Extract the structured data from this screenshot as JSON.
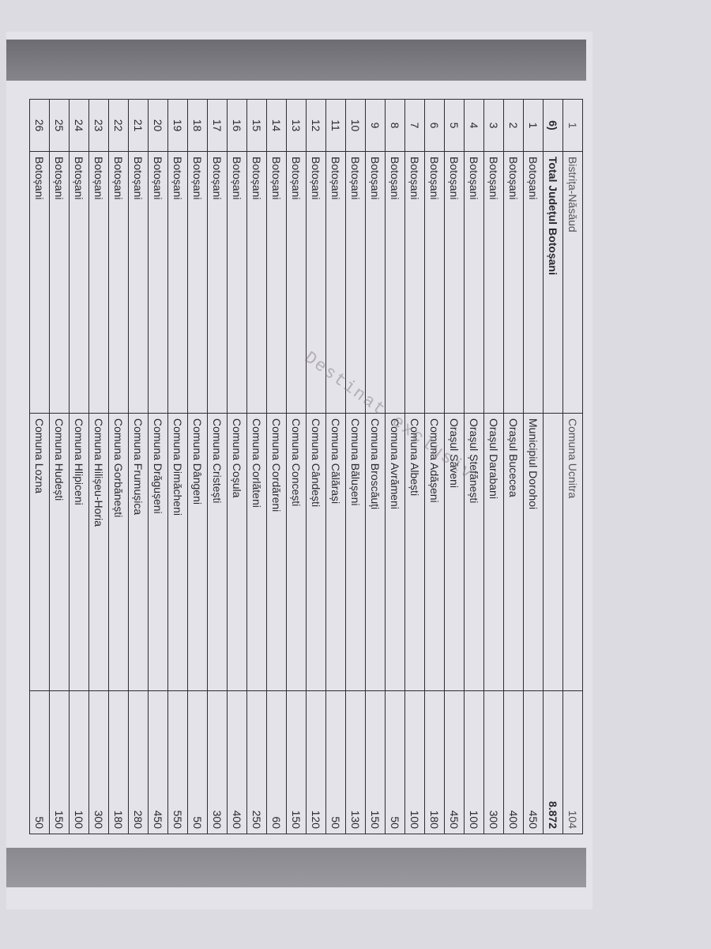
{
  "document": {
    "watermark": "Destinat exclusiv",
    "first_row": {
      "index": "1",
      "county": "Bistrița-Năsăud",
      "locality": "Comuna Ucnitra",
      "value": "104"
    },
    "total_row": {
      "index": "6)",
      "county": "Total Județul Botoșani",
      "locality": "",
      "value": "8.872"
    },
    "rows": [
      {
        "index": "1",
        "county": "Botoșani",
        "locality": "Municipiul Dorohoi",
        "value": "450"
      },
      {
        "index": "2",
        "county": "Botoșani",
        "locality": "Orașul Bucecea",
        "value": "400"
      },
      {
        "index": "3",
        "county": "Botoșani",
        "locality": "Orașul Darabani",
        "value": "300"
      },
      {
        "index": "4",
        "county": "Botoșani",
        "locality": "Orașul Ștefănești",
        "value": "100"
      },
      {
        "index": "5",
        "county": "Botoșani",
        "locality": "Orașul Săveni",
        "value": "450"
      },
      {
        "index": "6",
        "county": "Botoșani",
        "locality": "Comuna Adășeni",
        "value": "180"
      },
      {
        "index": "7",
        "county": "Botoșani",
        "locality": "Comuna Albești",
        "value": "100"
      },
      {
        "index": "8",
        "county": "Botoșani",
        "locality": "Comuna Avrămeni",
        "value": "50"
      },
      {
        "index": "9",
        "county": "Botoșani",
        "locality": "Comuna Broscăuți",
        "value": "150"
      },
      {
        "index": "10",
        "county": "Botoșani",
        "locality": "Comuna Bălușeni",
        "value": "130"
      },
      {
        "index": "11",
        "county": "Botoșani",
        "locality": "Comuna Călărași",
        "value": "50"
      },
      {
        "index": "12",
        "county": "Botoșani",
        "locality": "Comuna Cândești",
        "value": "120"
      },
      {
        "index": "13",
        "county": "Botoșani",
        "locality": "Comuna Concești",
        "value": "150"
      },
      {
        "index": "14",
        "county": "Botoșani",
        "locality": "Comuna Cordăreni",
        "value": "60"
      },
      {
        "index": "15",
        "county": "Botoșani",
        "locality": "Comuna Corlăteni",
        "value": "250"
      },
      {
        "index": "16",
        "county": "Botoșani",
        "locality": "Comuna Coșula",
        "value": "400"
      },
      {
        "index": "17",
        "county": "Botoșani",
        "locality": "Comuna Cristești",
        "value": "300"
      },
      {
        "index": "18",
        "county": "Botoșani",
        "locality": "Comuna Dângeni",
        "value": "50"
      },
      {
        "index": "19",
        "county": "Botoșani",
        "locality": "Comuna Dimăcheni",
        "value": "550"
      },
      {
        "index": "20",
        "county": "Botoșani",
        "locality": "Comuna Drăgușeni",
        "value": "450"
      },
      {
        "index": "21",
        "county": "Botoșani",
        "locality": "Comuna Frumușica",
        "value": "280"
      },
      {
        "index": "22",
        "county": "Botoșani",
        "locality": "Comuna Gorbănești",
        "value": "180"
      },
      {
        "index": "23",
        "county": "Botoșani",
        "locality": "Comuna Hilișeu-Horia",
        "value": "300"
      },
      {
        "index": "24",
        "county": "Botoșani",
        "locality": "Comuna Hlipiceni",
        "value": "100"
      },
      {
        "index": "25",
        "county": "Botoșani",
        "locality": "Comuna Hudești",
        "value": "150"
      },
      {
        "index": "26",
        "county": "Botoșani",
        "locality": "Comuna Lozna",
        "value": "50"
      }
    ]
  }
}
